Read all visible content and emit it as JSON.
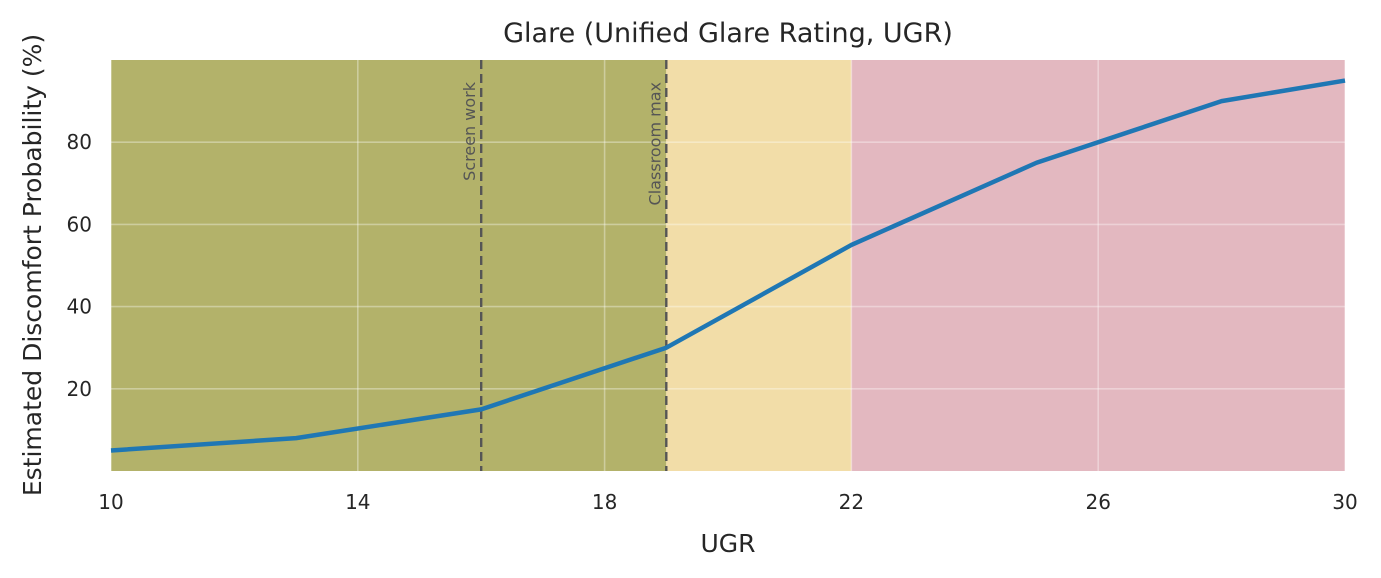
{
  "chart_data": {
    "type": "line",
    "title": "Glare (Unified Glare Rating, UGR)",
    "xlabel": "UGR",
    "ylabel": "Estimated Discomfort Probability (%)",
    "xlim": [
      10,
      30
    ],
    "ylim": [
      0,
      100
    ],
    "xticks": [
      10,
      14,
      18,
      22,
      26,
      30
    ],
    "yticks": [
      20,
      40,
      60,
      80
    ],
    "grid": true,
    "series": [
      {
        "x": [
          10,
          13,
          16,
          19,
          22,
          25,
          28,
          30
        ],
        "y": [
          5,
          8,
          15,
          30,
          55,
          75,
          90,
          95
        ],
        "color": "#1f77b4"
      }
    ],
    "bands": [
      {
        "from": 10,
        "to": 19,
        "color": "#b3b26a"
      },
      {
        "from": 19,
        "to": 22,
        "color": "#f2dda8"
      },
      {
        "from": 22,
        "to": 30,
        "color": "#e3b8c0"
      }
    ],
    "reference_lines": [
      {
        "x": 16,
        "label": "Screen work"
      },
      {
        "x": 19,
        "label": "Classroom max"
      }
    ]
  }
}
